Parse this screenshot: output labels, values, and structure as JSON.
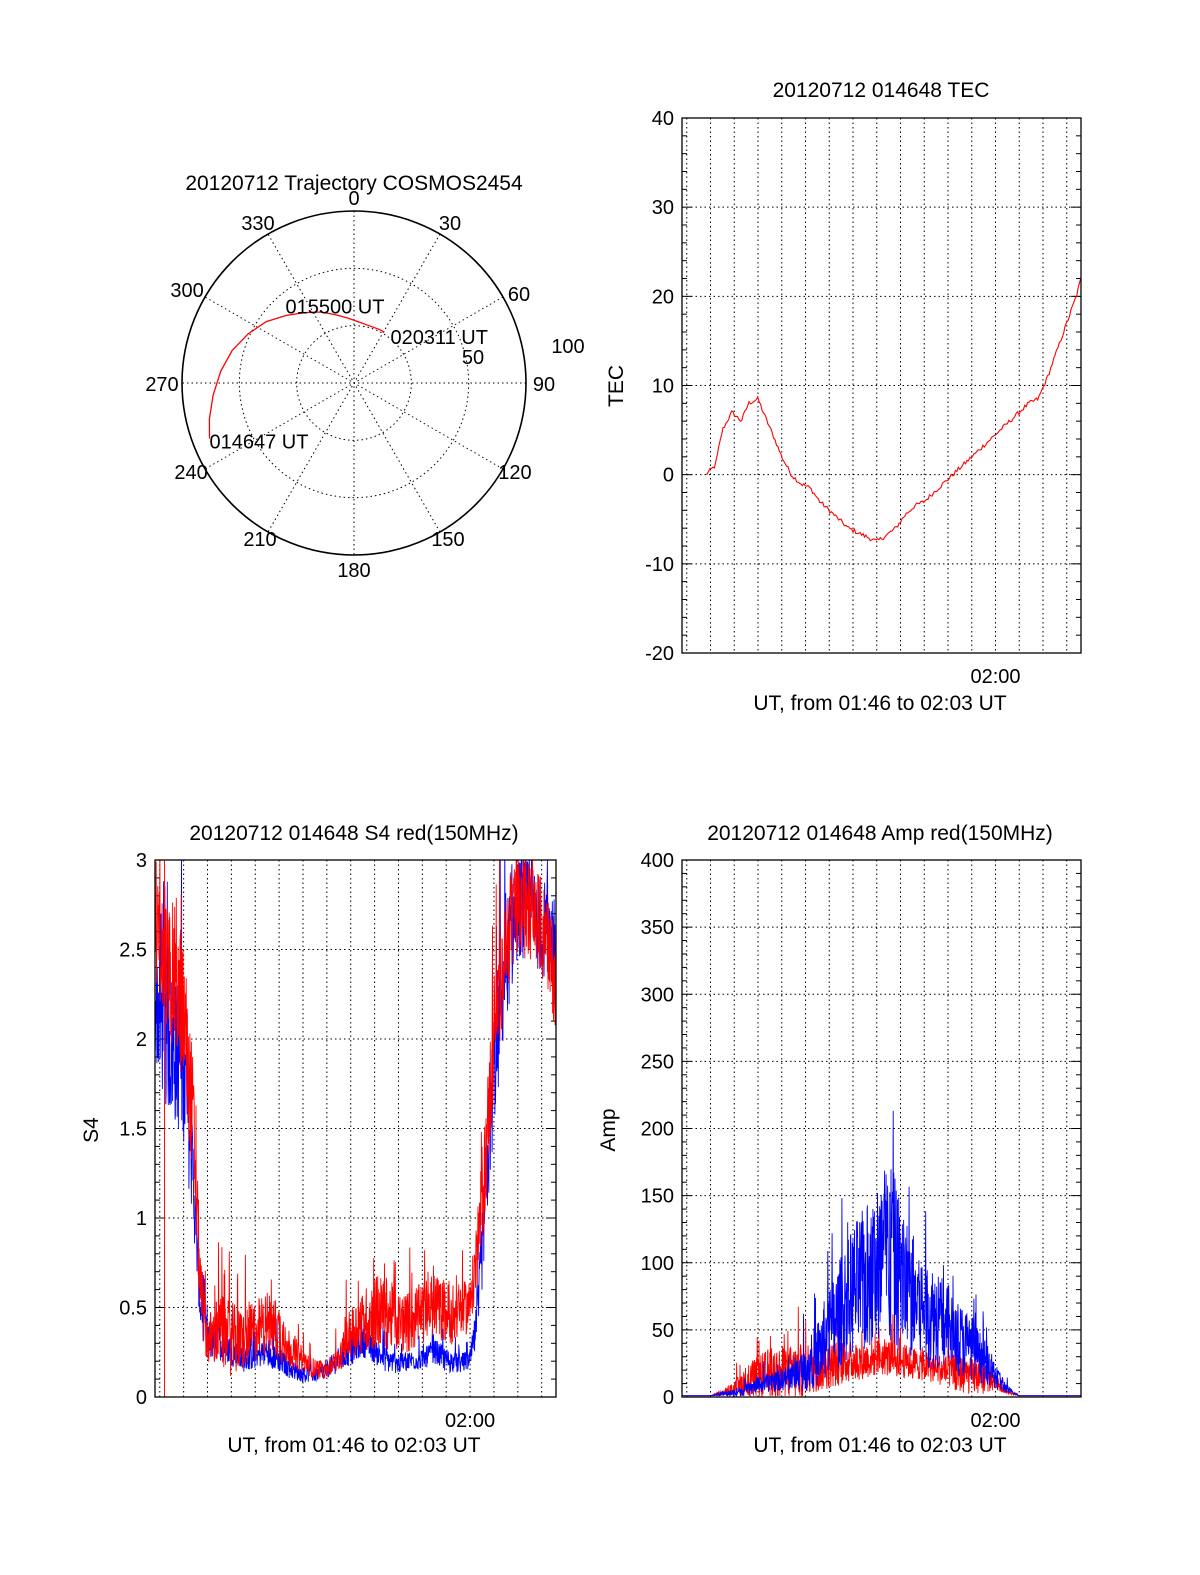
{
  "colors": {
    "red": "#ff0000",
    "blue": "#0000ff",
    "grid": "#000000"
  },
  "chart_data": [
    {
      "type": "polar",
      "title": "20120712 Trajectory COSMOS2454",
      "angle_labels": [
        {
          "deg": 0,
          "label": "0"
        },
        {
          "deg": 30,
          "label": "30"
        },
        {
          "deg": 60,
          "label": "60"
        },
        {
          "deg": 90,
          "label": "90"
        },
        {
          "deg": 120,
          "label": "120"
        },
        {
          "deg": 150,
          "label": "150"
        },
        {
          "deg": 180,
          "label": "180"
        },
        {
          "deg": 210,
          "label": "210"
        },
        {
          "deg": 240,
          "label": "240"
        },
        {
          "deg": 270,
          "label": "270"
        },
        {
          "deg": 300,
          "label": "300"
        },
        {
          "deg": 330,
          "label": "330"
        }
      ],
      "ring_labels": [
        "50",
        "100"
      ],
      "track": [
        [
          249,
          81
        ],
        [
          256,
          78
        ],
        [
          265,
          74
        ],
        [
          275,
          70
        ],
        [
          285,
          66
        ],
        [
          295,
          61
        ],
        [
          305,
          56
        ],
        [
          315,
          50
        ],
        [
          325,
          45
        ],
        [
          335,
          41
        ],
        [
          345,
          37
        ],
        [
          355,
          34
        ],
        [
          5,
          32
        ],
        [
          15,
          31
        ],
        [
          25,
          31
        ],
        [
          31,
          31
        ]
      ],
      "annotations": [
        {
          "label": "020311 UT",
          "az": 31,
          "zen": 31
        },
        {
          "label": "015500 UT",
          "az": 320,
          "zen": 46
        },
        {
          "label": "014647 UT",
          "az": 249,
          "zen": 81
        }
      ],
      "series_color": "red"
    },
    {
      "type": "line",
      "title": "20120712 014648 TEC",
      "ylabel": "TEC",
      "xlabel": "UT, from 01:46 to 02:03 UT",
      "xlim": [
        106.8,
        123.6
      ],
      "ylim": [
        -20,
        40
      ],
      "yticks": [
        -20,
        -10,
        0,
        10,
        20,
        30,
        40
      ],
      "xticks": [
        {
          "value": 120,
          "label": "02:00"
        }
      ],
      "series": [
        {
          "color": "red",
          "x": [
            107.8,
            108.2,
            108.5,
            108.9,
            109.3,
            109.6,
            110.0,
            110.3,
            110.7,
            111.0,
            111.4,
            111.8,
            112.2,
            112.6,
            113.0,
            113.4,
            113.8,
            114.2,
            114.6,
            115.0,
            115.4,
            115.8,
            116.2,
            116.6,
            117.0,
            117.4,
            117.8,
            118.2,
            118.6,
            119.0,
            119.4,
            119.8,
            120.2,
            120.6,
            121.0,
            121.4,
            121.8,
            122.2,
            122.6,
            123.0,
            123.4,
            123.6
          ],
          "y": [
            0,
            1,
            5,
            7,
            6,
            8,
            8.5,
            6.5,
            4,
            2,
            0,
            -1,
            -1.5,
            -3,
            -4,
            -5,
            -6,
            -6.5,
            -7,
            -7.5,
            -6.8,
            -6,
            -4.5,
            -3.5,
            -3,
            -2,
            -1,
            0,
            1,
            2,
            3,
            4,
            5,
            6,
            7,
            8,
            8.5,
            11,
            14,
            17,
            20,
            22
          ]
        }
      ]
    },
    {
      "type": "line",
      "title": "20120712 014648 S4 red(150MHz)",
      "ylabel": "S4",
      "xlabel": "UT, from 01:46 to 02:03 UT",
      "xlim": [
        106.8,
        123.6
      ],
      "ylim": [
        0,
        3
      ],
      "yticks": [
        {
          "value": 0,
          "label": "0"
        },
        {
          "value": 0.5,
          "label": "0.5"
        },
        {
          "value": 1,
          "label": "1"
        },
        {
          "value": 1.5,
          "label": "1.5"
        },
        {
          "value": 2,
          "label": "2"
        },
        {
          "value": 2.5,
          "label": "2.5"
        },
        {
          "value": 3,
          "label": "3"
        }
      ],
      "xticks": [
        {
          "value": 120,
          "label": "02:00"
        }
      ],
      "series": [
        {
          "color": "blue",
          "x": [
            106.8,
            107.2,
            107.6,
            108.0,
            108.4,
            108.7,
            109.0,
            109.5,
            110.0,
            110.5,
            111.0,
            111.5,
            112.0,
            112.5,
            113.0,
            113.5,
            114.0,
            114.5,
            115.0,
            115.5,
            116.0,
            116.5,
            117.0,
            117.5,
            118.0,
            118.5,
            119.0,
            119.5,
            120.0,
            120.3,
            120.6,
            121.0,
            121.5,
            122.0,
            122.5,
            123.0,
            123.6
          ],
          "y": [
            2.2,
            2.0,
            1.9,
            1.8,
            1.2,
            0.5,
            0.3,
            0.3,
            0.25,
            0.2,
            0.22,
            0.25,
            0.2,
            0.15,
            0.12,
            0.12,
            0.15,
            0.2,
            0.25,
            0.3,
            0.25,
            0.2,
            0.18,
            0.2,
            0.2,
            0.25,
            0.2,
            0.18,
            0.2,
            0.4,
            1.0,
            1.8,
            2.4,
            2.7,
            2.7,
            2.6,
            2.5
          ],
          "amp": [
            0.5,
            0.6,
            0.6,
            0.6,
            0.4,
            0.2,
            0.15,
            0.15,
            0.12,
            0.1,
            0.1,
            0.12,
            0.1,
            0.08,
            0.06,
            0.06,
            0.07,
            0.1,
            0.12,
            0.12,
            0.1,
            0.1,
            0.08,
            0.08,
            0.08,
            0.1,
            0.1,
            0.08,
            0.08,
            0.2,
            0.4,
            0.5,
            0.5,
            0.4,
            0.4,
            0.4,
            0.4
          ]
        },
        {
          "color": "red",
          "x": [
            106.8,
            107.2,
            107.6,
            108.0,
            108.4,
            108.7,
            109.0,
            109.5,
            110.0,
            110.5,
            111.0,
            111.5,
            112.0,
            112.5,
            113.0,
            113.5,
            114.0,
            114.5,
            115.0,
            115.5,
            116.0,
            116.5,
            117.0,
            117.5,
            118.0,
            118.5,
            119.0,
            119.5,
            120.0,
            120.3,
            120.6,
            121.0,
            121.5,
            122.0,
            122.5,
            123.0,
            123.6
          ],
          "y": [
            2.6,
            2.4,
            2.3,
            2.1,
            1.5,
            0.6,
            0.3,
            0.35,
            0.3,
            0.3,
            0.35,
            0.4,
            0.35,
            0.25,
            0.2,
            0.15,
            0.15,
            0.2,
            0.35,
            0.4,
            0.45,
            0.45,
            0.4,
            0.4,
            0.45,
            0.5,
            0.45,
            0.45,
            0.5,
            0.8,
            1.2,
            2.0,
            2.5,
            2.7,
            2.7,
            2.6,
            2.3
          ],
          "amp": [
            0.4,
            0.5,
            0.6,
            0.6,
            0.5,
            0.3,
            0.2,
            0.3,
            0.3,
            0.25,
            0.25,
            0.25,
            0.25,
            0.15,
            0.1,
            0.08,
            0.08,
            0.1,
            0.2,
            0.25,
            0.3,
            0.3,
            0.25,
            0.25,
            0.25,
            0.25,
            0.25,
            0.25,
            0.2,
            0.3,
            0.4,
            0.5,
            0.4,
            0.4,
            0.4,
            0.4,
            0.4
          ]
        }
      ]
    },
    {
      "type": "line",
      "title": "20120712 014648 Amp red(150MHz)",
      "ylabel": "Amp",
      "xlabel": "UT, from 01:46 to 02:03 UT",
      "xlim": [
        106.8,
        123.6
      ],
      "ylim": [
        0,
        400
      ],
      "yticks": [
        0,
        50,
        100,
        150,
        200,
        250,
        300,
        350,
        400
      ],
      "xticks": [
        {
          "value": 120,
          "label": "02:00"
        }
      ],
      "series": [
        {
          "color": "red",
          "x": [
            106.8,
            108.0,
            108.5,
            109.0,
            109.5,
            110.0,
            110.5,
            111.0,
            111.5,
            112.0,
            112.5,
            113.0,
            113.5,
            114.0,
            114.5,
            115.0,
            115.5,
            116.0,
            116.5,
            117.0,
            117.5,
            118.0,
            118.5,
            119.0,
            119.5,
            120.0,
            120.5,
            121.0,
            121.5,
            122.0,
            123.6
          ],
          "y": [
            1,
            1,
            3,
            5,
            10,
            12,
            14,
            15,
            16,
            18,
            20,
            22,
            24,
            25,
            26,
            28,
            28,
            26,
            24,
            22,
            20,
            18,
            16,
            14,
            12,
            10,
            4,
            1,
            1,
            1,
            1
          ],
          "amp": [
            0,
            0,
            3,
            8,
            18,
            24,
            30,
            30,
            30,
            28,
            26,
            25,
            24,
            22,
            20,
            20,
            20,
            18,
            18,
            16,
            16,
            18,
            20,
            20,
            16,
            8,
            3,
            0,
            0,
            0,
            0
          ]
        },
        {
          "color": "blue",
          "x": [
            106.8,
            108.0,
            108.5,
            109.0,
            109.5,
            110.0,
            110.5,
            111.0,
            111.5,
            112.0,
            112.5,
            113.0,
            113.5,
            114.0,
            114.5,
            115.0,
            115.5,
            116.0,
            116.5,
            117.0,
            117.5,
            118.0,
            118.5,
            119.0,
            119.5,
            120.0,
            120.5,
            121.0,
            121.5,
            122.0,
            123.6
          ],
          "y": [
            1,
            1,
            2,
            3,
            5,
            8,
            10,
            12,
            15,
            20,
            30,
            45,
            60,
            75,
            80,
            90,
            100,
            85,
            70,
            60,
            55,
            50,
            40,
            35,
            25,
            15,
            5,
            1,
            1,
            1,
            1
          ],
          "amp": [
            0,
            0,
            2,
            4,
            6,
            8,
            10,
            12,
            15,
            25,
            35,
            50,
            60,
            70,
            80,
            90,
            110,
            80,
            70,
            60,
            55,
            45,
            40,
            35,
            25,
            15,
            5,
            0,
            0,
            0,
            0
          ]
        }
      ]
    }
  ]
}
